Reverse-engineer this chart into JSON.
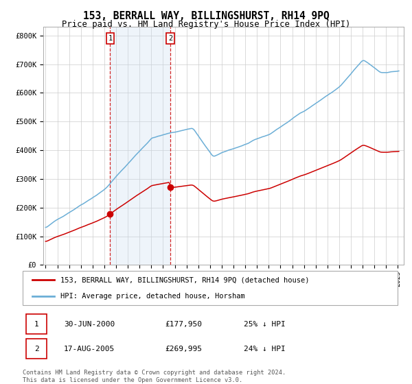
{
  "title": "153, BERRALL WAY, BILLINGSHURST, RH14 9PQ",
  "subtitle": "Price paid vs. HM Land Registry's House Price Index (HPI)",
  "yticks": [
    0,
    100000,
    200000,
    300000,
    400000,
    500000,
    600000,
    700000,
    800000
  ],
  "ytick_labels": [
    "£0",
    "£100K",
    "£200K",
    "£300K",
    "£400K",
    "£500K",
    "£600K",
    "£700K",
    "£800K"
  ],
  "hpi_color": "#6baed6",
  "price_color": "#cc0000",
  "sale1_date": 2000.5,
  "sale1_price": 177950,
  "sale2_date": 2005.63,
  "sale2_price": 269995,
  "shade_color": "#ddeeff",
  "vline_color": "#cc0000",
  "legend_label1": "153, BERRALL WAY, BILLINGSHURST, RH14 9PQ (detached house)",
  "legend_label2": "HPI: Average price, detached house, Horsham",
  "table_rows": [
    {
      "num": "1",
      "date": "30-JUN-2000",
      "price": "£177,950",
      "pct": "25% ↓ HPI"
    },
    {
      "num": "2",
      "date": "17-AUG-2005",
      "price": "£269,995",
      "pct": "24% ↓ HPI"
    }
  ],
  "footer": "Contains HM Land Registry data © Crown copyright and database right 2024.\nThis data is licensed under the Open Government Licence v3.0.",
  "bg_color": "#ffffff",
  "grid_color": "#cccccc"
}
